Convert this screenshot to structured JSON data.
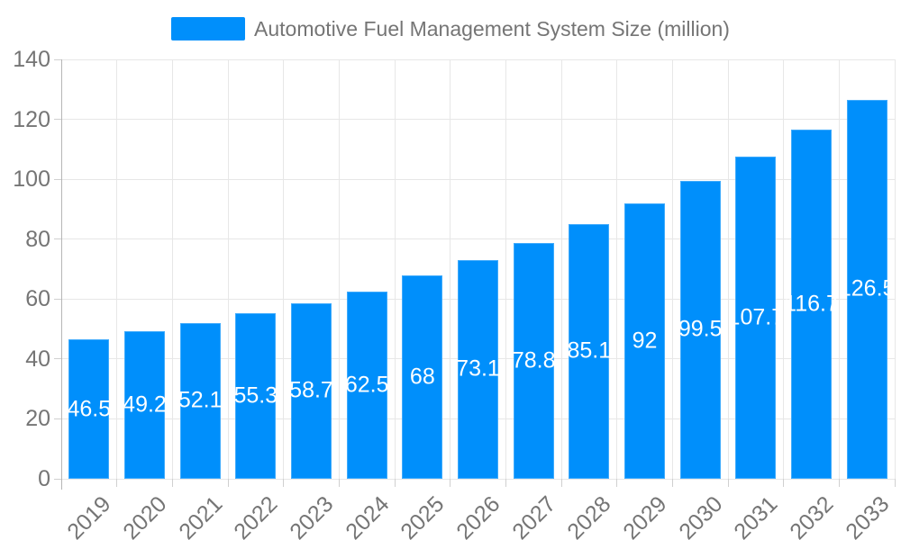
{
  "legend": {
    "label": "Automotive Fuel Management System Size (million)"
  },
  "chart_data": {
    "type": "bar",
    "title": "Automotive Fuel Management System Size (million)",
    "categories": [
      "2019",
      "2020",
      "2021",
      "2022",
      "2023",
      "2024",
      "2025",
      "2026",
      "2027",
      "2028",
      "2029",
      "2030",
      "2031",
      "2032",
      "2033"
    ],
    "series": [
      {
        "name": "Automotive Fuel Management System Size (million)",
        "values": [
          46.5,
          49.2,
          52.1,
          55.3,
          58.7,
          62.5,
          68,
          73.1,
          78.8,
          85.1,
          92,
          99.5,
          107.7,
          116.7,
          126.5
        ]
      }
    ],
    "xlabel": "",
    "ylabel": "",
    "ylim": [
      0,
      140
    ],
    "yticks": [
      0,
      20,
      40,
      60,
      80,
      100,
      120,
      140
    ],
    "grid": "horizontal-and-vertical",
    "legend_position": "top-center",
    "data_labels": "inside-center-white",
    "x_label_rotation_deg": -45,
    "colors": {
      "bar": "#008FFB",
      "grid": "#e7e7e7",
      "axis_line": "#b6b6b6",
      "tick": "#d0d0d0",
      "axis_text": "#757575",
      "data_label_text": "#ffffff"
    }
  }
}
